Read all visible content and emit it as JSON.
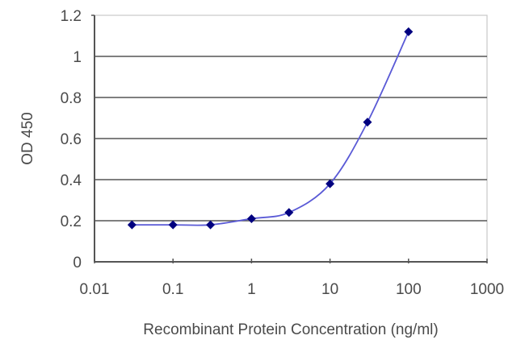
{
  "chart_data": {
    "type": "line",
    "title": "",
    "xlabel": "Recombinant Protein Concentration (ng/ml)",
    "ylabel": "OD 450",
    "x_scale": "log",
    "xlim": [
      0.01,
      1000
    ],
    "ylim": [
      0,
      1.2
    ],
    "x_ticks": [
      "0.01",
      "0.1",
      "1",
      "10",
      "100",
      "1000"
    ],
    "y_ticks": [
      "0",
      "0.2",
      "0.4",
      "0.6",
      "0.8",
      "1",
      "1.2"
    ],
    "grid": "horizontal",
    "legend": "none",
    "series": [
      {
        "name": "OD 450",
        "color": "#00007f",
        "line_color": "#5a5ad6",
        "marker": "diamond",
        "x": [
          0.03,
          0.1,
          0.3,
          1,
          3,
          10,
          30,
          100
        ],
        "values": [
          0.18,
          0.18,
          0.18,
          0.21,
          0.24,
          0.38,
          0.68,
          1.12
        ]
      }
    ]
  },
  "colors": {
    "axis": "#555555",
    "grid": "#555555",
    "marker": "#00007f",
    "line": "#5a5ad6",
    "frame": "#c8c8c8"
  }
}
